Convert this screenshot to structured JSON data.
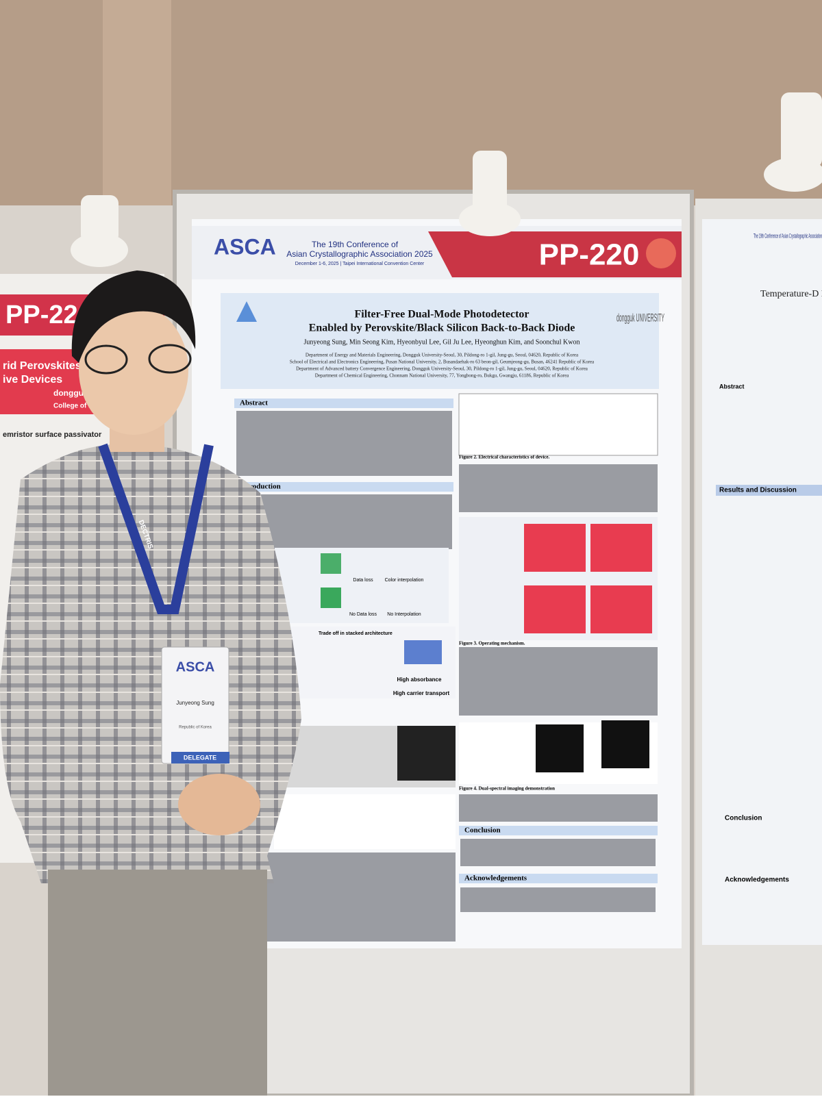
{
  "poster": {
    "conference_logo": "ASCA",
    "conference": "The 19th Conference of",
    "association": "Asian Crystallographic Association 2025",
    "dates": "December 1-6, 2025 | Taipei International Convention Center",
    "number": "PP-220",
    "title_lines": [
      "Filter-Free Dual-Mode Photodetector",
      "Enabled by Perovskite/Black Silicon Back-to-Back Diode"
    ],
    "authors": "Junyeong Sung, Min Seong Kim, Hyeonbyul Lee, Gil Ju Lee, Hyeonghun Kim, and Soonchul Kwon",
    "university": "dongguk UNIVERSITY",
    "affiliations": [
      "Department of Energy and Materials Engineering, Dongguk University-Seoul, 30, Pildong-ro 1-gil, Jung-gu, Seoul, 04620, Republic of Korea",
      "School of Electrical and Electronics Engineering, Pusan National University, 2, Busandaehak-ro 63 beon-gil, Geumjeong-gu, Busan, 46241 Republic of Korea",
      "Department of Advanced battery Convergence Engineering, Dongguk University-Seoul, 30, Pildong-ro 1-gil, Jung-gu, Seoul, 04620, Republic of Korea",
      "Department of Chemical Engineering, Chonnam National University, 77, Yongbong-ro, Bukgu, Gwangju, 61186, Republic of Korea"
    ],
    "sections": [
      "Abstract",
      "Introduction",
      "Conclusion",
      "Acknowledgements"
    ],
    "figure_captions": [
      "Figure 2. Electrical characteristics of device.",
      "Figure 3. Operating mechanism.",
      "Figure 4. Dual-spectral imaging demonstration"
    ],
    "figure_labels": [
      "Data loss",
      "Color interpolation",
      "No Data loss",
      "No Interpolation",
      "Trade off in stacked architecture",
      "High absorbance",
      "High carrier transport"
    ]
  },
  "badge": {
    "logo": "ASCA",
    "name": "Junyeong Sung",
    "country": "Republic of Korea",
    "role": "DELEGATE"
  },
  "lanyard": "DECTRIS",
  "left_poster": {
    "number": "PP-22",
    "title_lines": [
      "rid Perovskites",
      "ive Devices"
    ],
    "university": "dongguk UNIVERSITY",
    "college": "College of Engine",
    "heading": "emristor surface passivator"
  },
  "right_poster": {
    "association": "The 19th Conference of Asian Crystallographic Association",
    "title": "Temperature-D Enhanc",
    "headings": [
      "Abstract",
      "Results and Discussion",
      "Conclusion",
      "Acknowledgements"
    ]
  }
}
